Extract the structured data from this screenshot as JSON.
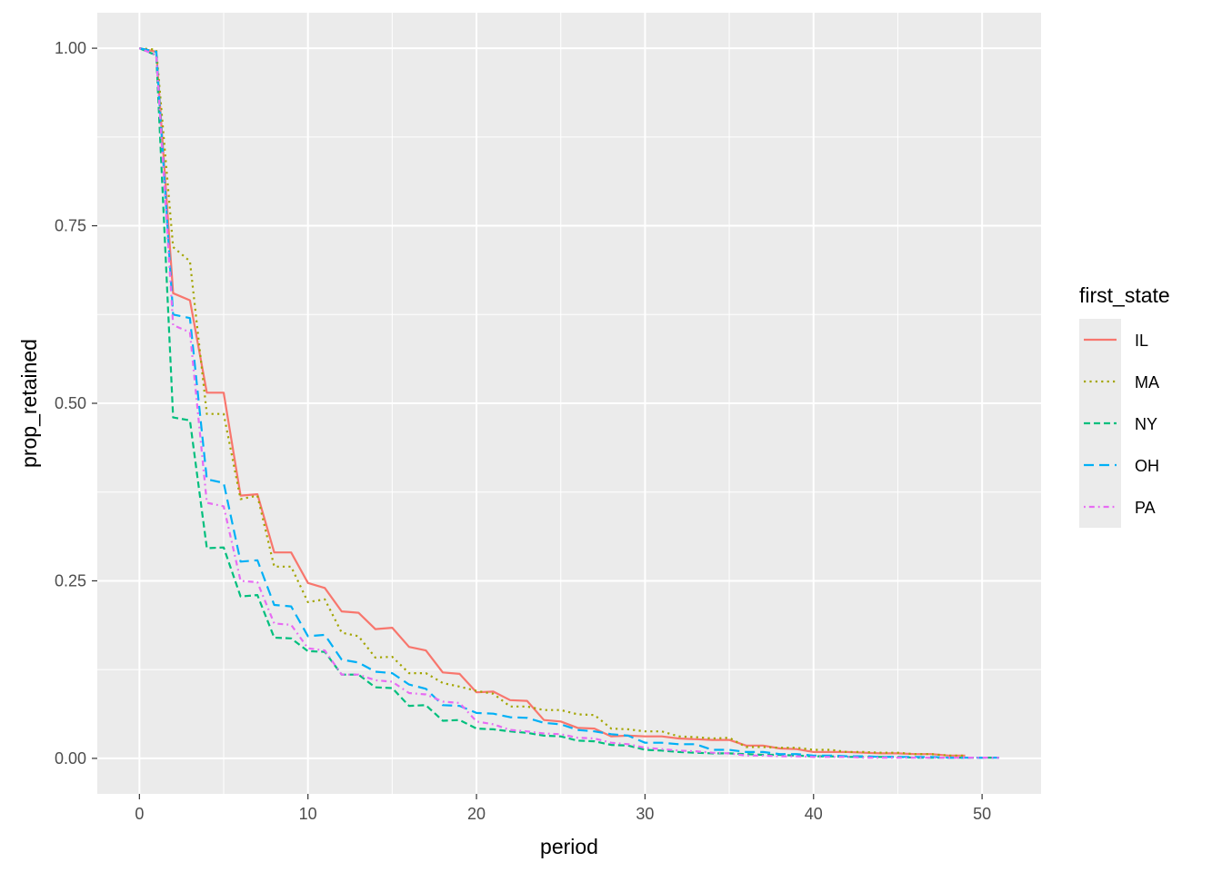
{
  "chart_data": {
    "type": "line",
    "title": "",
    "xlabel": "period",
    "ylabel": "prop_retained",
    "xlim": [
      -2.5,
      53.5
    ],
    "ylim": [
      -0.05,
      1.05
    ],
    "x_ticks": [
      0,
      10,
      20,
      30,
      40,
      50
    ],
    "x_tick_labels": [
      "0",
      "10",
      "20",
      "30",
      "40",
      "50"
    ],
    "y_ticks": [
      0,
      0.25,
      0.5,
      0.75,
      1
    ],
    "y_tick_labels": [
      "0.00",
      "0.25",
      "0.50",
      "0.75",
      "1.00"
    ],
    "grid": true,
    "legend": {
      "title": "first_state",
      "position": "right"
    },
    "series": [
      {
        "name": "IL",
        "color": "#F8766D",
        "linetype": "solid",
        "x": [
          0,
          1,
          2,
          3,
          4,
          5,
          6,
          7,
          8,
          9,
          10,
          11,
          12,
          13,
          14,
          15,
          16,
          17,
          18,
          19,
          20,
          21,
          22,
          23,
          24,
          25,
          26,
          27,
          28,
          29,
          30,
          31,
          32,
          33,
          34,
          35,
          36,
          37,
          38,
          39,
          40,
          41,
          42,
          43,
          44,
          45,
          46,
          47,
          48,
          49
        ],
        "y": [
          1.0,
          0.995,
          0.655,
          0.645,
          0.515,
          0.515,
          0.37,
          0.372,
          0.29,
          0.29,
          0.247,
          0.24,
          0.207,
          0.205,
          0.182,
          0.184,
          0.157,
          0.152,
          0.121,
          0.119,
          0.093,
          0.094,
          0.082,
          0.081,
          0.054,
          0.052,
          0.043,
          0.042,
          0.031,
          0.032,
          0.031,
          0.031,
          0.028,
          0.027,
          0.026,
          0.026,
          0.018,
          0.018,
          0.014,
          0.013,
          0.009,
          0.009,
          0.009,
          0.008,
          0.007,
          0.007,
          0.006,
          0.006,
          0.004,
          0.004
        ]
      },
      {
        "name": "MA",
        "color": "#A3A500",
        "linetype": "dotted",
        "x": [
          0,
          1,
          2,
          3,
          4,
          5,
          6,
          7,
          8,
          9,
          10,
          11,
          12,
          13,
          14,
          15,
          16,
          17,
          18,
          19,
          20,
          21,
          22,
          23,
          24,
          25,
          26,
          27,
          28,
          29,
          30,
          31,
          32,
          33,
          34,
          35,
          36,
          37,
          38,
          39,
          40,
          41,
          42,
          43,
          44,
          45,
          46,
          47,
          48,
          49
        ],
        "y": [
          1.0,
          0.998,
          0.72,
          0.7,
          0.485,
          0.485,
          0.365,
          0.37,
          0.27,
          0.27,
          0.22,
          0.224,
          0.177,
          0.172,
          0.142,
          0.143,
          0.12,
          0.12,
          0.106,
          0.101,
          0.095,
          0.091,
          0.073,
          0.073,
          0.068,
          0.068,
          0.062,
          0.061,
          0.042,
          0.041,
          0.038,
          0.038,
          0.031,
          0.03,
          0.028,
          0.029,
          0.016,
          0.016,
          0.015,
          0.015,
          0.012,
          0.012,
          0.009,
          0.009,
          0.008,
          0.008,
          0.006,
          0.006,
          0.004,
          0.004
        ]
      },
      {
        "name": "NY",
        "color": "#00BF7D",
        "linetype": "dashed",
        "x": [
          0,
          1,
          2,
          3,
          4,
          5,
          6,
          7,
          8,
          9,
          10,
          11,
          12,
          13,
          14,
          15,
          16,
          17,
          18,
          19,
          20,
          21,
          22,
          23,
          24,
          25,
          26,
          27,
          28,
          29,
          30,
          31,
          32,
          33,
          34,
          35,
          36,
          37,
          38,
          39,
          40,
          41,
          42,
          43,
          44,
          45,
          46,
          47,
          48,
          49,
          50,
          51
        ],
        "y": [
          1.0,
          0.99,
          0.48,
          0.476,
          0.296,
          0.297,
          0.228,
          0.23,
          0.17,
          0.169,
          0.151,
          0.15,
          0.118,
          0.118,
          0.1,
          0.099,
          0.074,
          0.075,
          0.053,
          0.054,
          0.042,
          0.041,
          0.038,
          0.036,
          0.032,
          0.031,
          0.025,
          0.024,
          0.019,
          0.018,
          0.012,
          0.011,
          0.009,
          0.008,
          0.007,
          0.007,
          0.006,
          0.005,
          0.005,
          0.004,
          0.003,
          0.003,
          0.002,
          0.002,
          0.002,
          0.002,
          0.001,
          0.001,
          0.001,
          0.001,
          0.001,
          0.001
        ]
      },
      {
        "name": "OH",
        "color": "#00B0F6",
        "linetype": "longdash",
        "x": [
          0,
          1,
          2,
          3,
          4,
          5,
          6,
          7,
          8,
          9,
          10,
          11,
          12,
          13,
          14,
          15,
          16,
          17,
          18,
          19,
          20,
          21,
          22,
          23,
          24,
          25,
          26,
          27,
          28,
          29,
          30,
          31,
          32,
          33,
          34,
          35,
          36,
          37,
          38,
          39,
          40,
          41,
          42,
          43,
          44,
          45,
          46,
          47,
          48,
          49,
          50,
          51
        ],
        "y": [
          1.0,
          0.995,
          0.625,
          0.62,
          0.393,
          0.388,
          0.277,
          0.279,
          0.216,
          0.214,
          0.172,
          0.174,
          0.139,
          0.135,
          0.122,
          0.12,
          0.104,
          0.098,
          0.075,
          0.074,
          0.064,
          0.063,
          0.058,
          0.057,
          0.05,
          0.048,
          0.04,
          0.038,
          0.034,
          0.032,
          0.022,
          0.022,
          0.02,
          0.02,
          0.012,
          0.012,
          0.009,
          0.009,
          0.006,
          0.006,
          0.004,
          0.004,
          0.003,
          0.003,
          0.002,
          0.002,
          0.002,
          0.002,
          0.001,
          0.001,
          0.001,
          0.001
        ]
      },
      {
        "name": "PA",
        "color": "#E76BF3",
        "linetype": "dotdash",
        "x": [
          0,
          1,
          2,
          3,
          4,
          5,
          6,
          7,
          8,
          9,
          10,
          11,
          12,
          13,
          14,
          15,
          16,
          17,
          18,
          19,
          20,
          21,
          22,
          23,
          24,
          25,
          26,
          27,
          28,
          29,
          30,
          31,
          32,
          33,
          34,
          35,
          36,
          37,
          38,
          39,
          40,
          41,
          42,
          43,
          44,
          45,
          46,
          47,
          48,
          49,
          50,
          51
        ],
        "y": [
          1.0,
          0.99,
          0.61,
          0.6,
          0.36,
          0.355,
          0.25,
          0.248,
          0.19,
          0.188,
          0.155,
          0.152,
          0.118,
          0.118,
          0.11,
          0.108,
          0.092,
          0.09,
          0.08,
          0.078,
          0.052,
          0.048,
          0.04,
          0.038,
          0.035,
          0.034,
          0.029,
          0.028,
          0.022,
          0.02,
          0.015,
          0.013,
          0.011,
          0.01,
          0.008,
          0.007,
          0.004,
          0.004,
          0.003,
          0.003,
          0.002,
          0.002,
          0.002,
          0.001,
          0.001,
          0.001,
          0.001,
          0.001,
          0.001,
          0.001,
          0.001,
          0.001
        ]
      }
    ]
  }
}
